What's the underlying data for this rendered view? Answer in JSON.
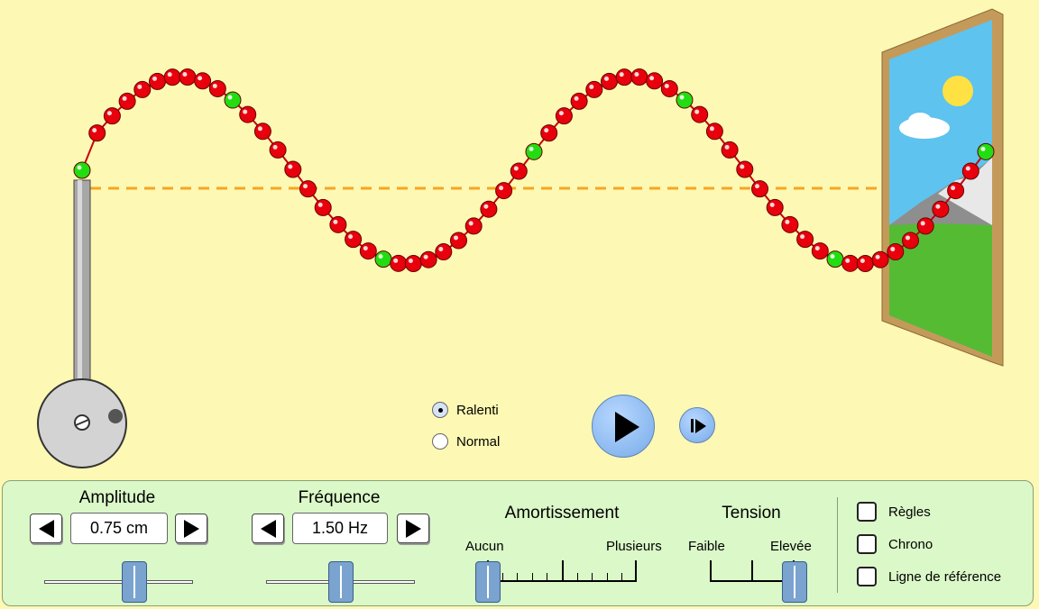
{
  "playback": {
    "speed_options": [
      {
        "label": "Ralenti",
        "selected": true
      },
      {
        "label": "Normal",
        "selected": false
      }
    ]
  },
  "string": {
    "bead_color": "#e8000c",
    "marker_bead_color": "#22dd11",
    "reference_line_color": "#f5a623",
    "bead_count": 61,
    "wavelengths_visible": 2,
    "amplitude_level": 0.75
  },
  "controls": {
    "amplitude": {
      "title": "Amplitude",
      "value": "0.75 cm"
    },
    "frequency": {
      "title": "Fréquence",
      "value": "1.50 Hz"
    },
    "damping": {
      "title": "Amortissement",
      "min_label": "Aucun",
      "max_label": "Plusieurs",
      "level": 0
    },
    "tension": {
      "title": "Tension",
      "min_label": "Faible",
      "max_label": "Elevée",
      "level": 1
    }
  },
  "options": {
    "rulers": {
      "label": "Règles",
      "checked": false
    },
    "timer": {
      "label": "Chrono",
      "checked": false
    },
    "reference_line": {
      "label": "Ligne de référence",
      "checked": false
    }
  }
}
